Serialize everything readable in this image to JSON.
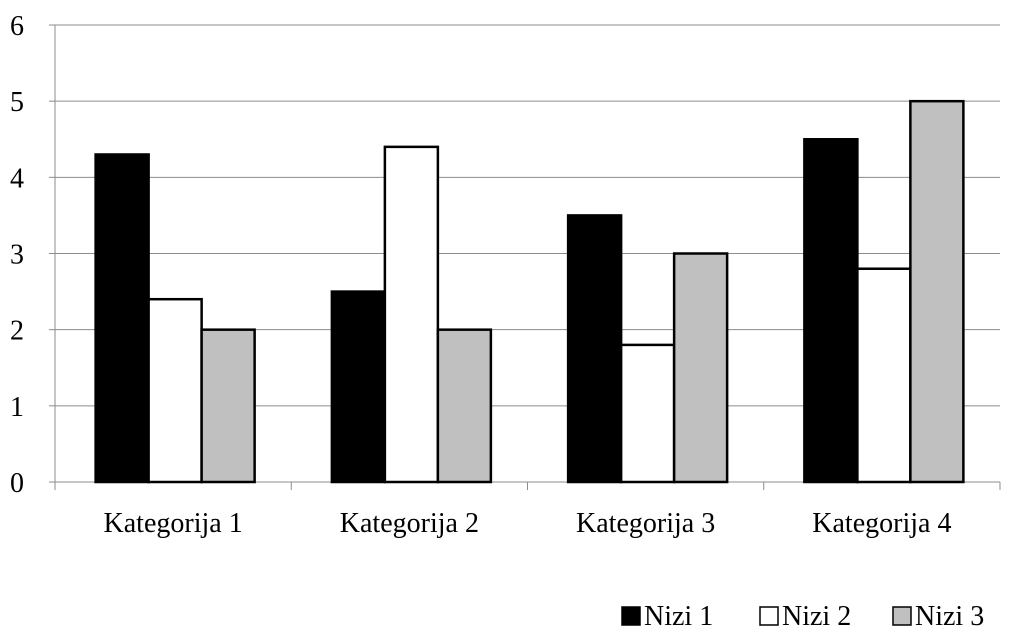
{
  "chart_data": {
    "type": "bar",
    "categories": [
      "Kategorija 1",
      "Kategorija 2",
      "Kategorija 3",
      "Kategorija 4"
    ],
    "series": [
      {
        "name": "Nizi 1",
        "values": [
          4.3,
          2.5,
          3.5,
          4.5
        ],
        "color": "#000000"
      },
      {
        "name": "Nizi 2",
        "values": [
          2.4,
          4.4,
          1.8,
          2.8
        ],
        "color": "#ffffff"
      },
      {
        "name": "Nizi 3",
        "values": [
          2.0,
          2.0,
          3.0,
          5.0
        ],
        "color": "#c0c0c0"
      }
    ],
    "title": "",
    "xlabel": "",
    "ylabel": "",
    "ylim": [
      0,
      6
    ],
    "yticks": [
      "0",
      "1",
      "2",
      "3",
      "4",
      "5",
      "6"
    ],
    "grid": true,
    "legend_position": "bottom-right"
  }
}
